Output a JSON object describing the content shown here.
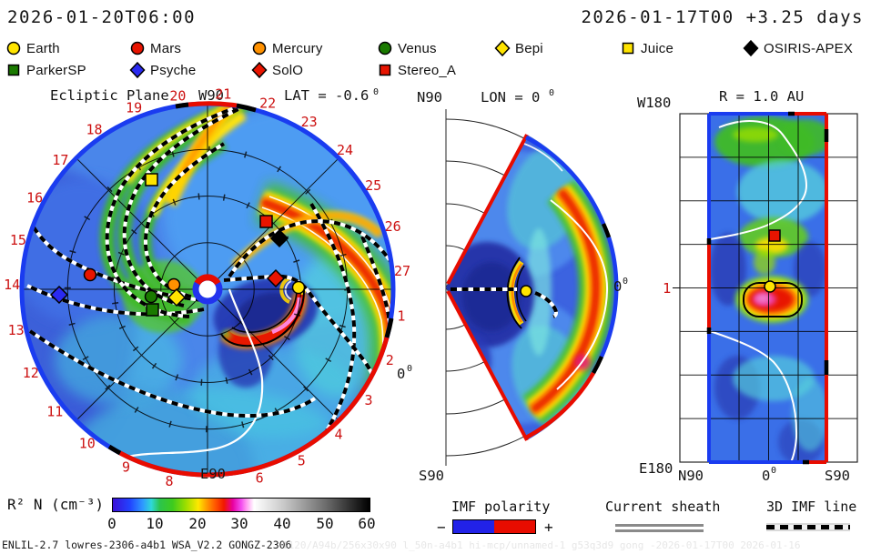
{
  "header": {
    "sim_time": "2026-01-20T06:00",
    "start_time": "2026-01-17T00 +3.25 days"
  },
  "legend": {
    "row1": [
      {
        "name": "Earth",
        "shape": "circle",
        "color": "#ffe400"
      },
      {
        "name": "Mars",
        "shape": "circle",
        "color": "#e81400"
      },
      {
        "name": "Mercury",
        "shape": "circle",
        "color": "#ff9100"
      },
      {
        "name": "Venus",
        "shape": "circle",
        "color": "#1a7a00"
      },
      {
        "name": "Bepi",
        "shape": "diamond",
        "color": "#ffe400"
      },
      {
        "name": "Juice",
        "shape": "square",
        "color": "#ffe400"
      },
      {
        "name": "OSIRIS-APEX",
        "shape": "diamond",
        "color": "#000000"
      }
    ],
    "row2": [
      {
        "name": "ParkerSP",
        "shape": "square",
        "color": "#1a7a00"
      },
      {
        "name": "Psyche",
        "shape": "diamond",
        "color": "#2a2af0"
      },
      {
        "name": "SolO",
        "shape": "diamond",
        "color": "#e81400"
      },
      {
        "name": "Stereo_A",
        "shape": "square",
        "color": "#e81400"
      }
    ]
  },
  "panels": {
    "ecliptic": {
      "title": "Ecliptic Plane",
      "top_label": "W90",
      "bottom_label": "E90",
      "lat_label": "LAT = -0.6",
      "lat_sup": "0",
      "right_label": "0",
      "right_sup": "0",
      "day_labels": [
        "1",
        "2",
        "3",
        "4",
        "5",
        "6",
        "8",
        "9",
        "10",
        "11",
        "12",
        "13",
        "14",
        "15",
        "16",
        "17",
        "18",
        "19",
        "20",
        "21",
        "22",
        "23",
        "24",
        "25",
        "26",
        "27"
      ]
    },
    "meridional": {
      "title": "LON = 0",
      "title_sup": "0",
      "n_label": "N90",
      "s_label": "S90",
      "right_label": "0",
      "right_sup": "0"
    },
    "radial": {
      "title": "R = 1.0 AU",
      "top_left": "W180",
      "bottom_left": "E180",
      "x_labels": [
        "N90",
        "0",
        "S90"
      ],
      "x_sup": "0",
      "r_tick": "1"
    }
  },
  "chart_data": {
    "type": "heatmap",
    "quantity": "R² N (cm⁻³)",
    "scale_range": [
      0,
      60
    ],
    "views": [
      "Ecliptic Plane LAT = -0.6°",
      "Meridional LON = 0°",
      "Radial map R = 1.0 AU"
    ],
    "time_axis_days": [
      1,
      2,
      3,
      4,
      5,
      6,
      8,
      9,
      10,
      11,
      12,
      13,
      14,
      15,
      16,
      17,
      18,
      19,
      20,
      21,
      22,
      23,
      24,
      25,
      26,
      27
    ],
    "bodies_in_ecliptic": [
      {
        "body": "Earth",
        "approx_xy": [
          328,
          316
        ]
      },
      {
        "body": "SolO",
        "approx_xy": [
          303,
          306
        ]
      },
      {
        "body": "Stereo_A",
        "approx_xy": [
          293,
          244
        ]
      },
      {
        "body": "OSIRIS-APEX",
        "approx_xy": [
          307,
          262
        ]
      },
      {
        "body": "Juice",
        "approx_xy": [
          167,
          198
        ]
      },
      {
        "body": "Mars",
        "approx_xy": [
          99,
          302
        ]
      },
      {
        "body": "Psyche",
        "approx_xy": [
          65,
          324
        ]
      },
      {
        "body": "Mercury",
        "approx_xy": [
          191,
          313
        ]
      },
      {
        "body": "Venus",
        "approx_xy": [
          166,
          326
        ]
      },
      {
        "body": "Bepi",
        "approx_xy": [
          194,
          327
        ]
      },
      {
        "body": "ParkerSP",
        "approx_xy": [
          168,
          341
        ]
      }
    ],
    "features": [
      "CME density front near Earth",
      "Parker-spiral high-density streams",
      "IMF polarity boundary ring (blue −, red +)",
      "current sheet (white)",
      "3D IMF lines (dashed)"
    ]
  },
  "colorbar": {
    "label": "R² N (cm⁻³)",
    "ticks": [
      "0",
      "10",
      "20",
      "30",
      "40",
      "50",
      "60"
    ]
  },
  "bottom_legend": {
    "imf": {
      "label": "IMF polarity",
      "minus": "−",
      "plus": "+",
      "neg_color": "#2222e8",
      "pos_color": "#e80c00"
    },
    "sheath": {
      "label": "Current sheath"
    },
    "imf_line": {
      "label": "3D IMF line"
    }
  },
  "footer": {
    "model_info": "ENLIL-2.7 lowres-2306-a4b1 WSA_V2.2 GONGZ-2306",
    "watermark": "1120/A94b/256x30x90 l_50n-a4b1 hi-mcp/unnamed-1 g53q3d9 gong -2026-01-17T00 2026-01-16"
  }
}
